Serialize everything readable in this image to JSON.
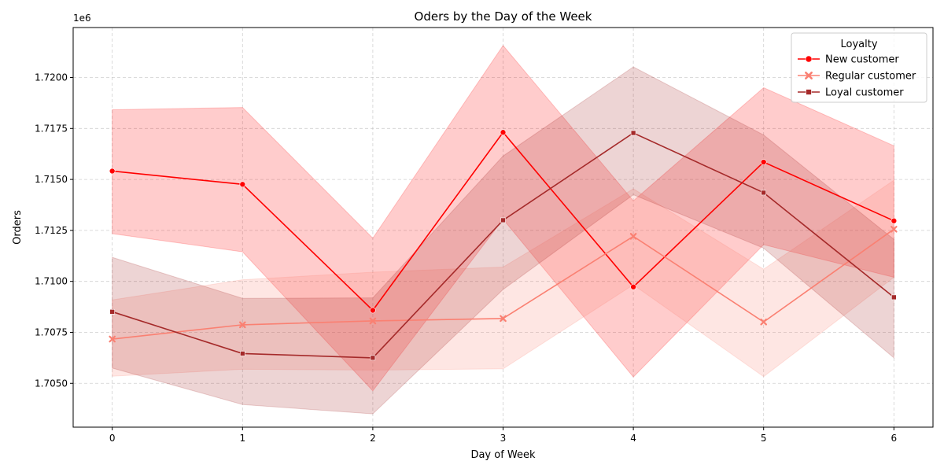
{
  "chart_data": {
    "type": "line",
    "title": "Oders by the Day of the Week",
    "xlabel": "Day of Week",
    "ylabel": "Orders",
    "offset_label": "1e6",
    "x": [
      0,
      1,
      2,
      3,
      4,
      5,
      6
    ],
    "xlim": [
      -0.3,
      6.3
    ],
    "ylim": [
      1.70285,
      1.72245
    ],
    "y_ticks": [
      1.705,
      1.7075,
      1.71,
      1.7125,
      1.715,
      1.7175,
      1.72
    ],
    "y_tick_labels": [
      "1.7050",
      "1.7075",
      "1.7100",
      "1.7125",
      "1.7150",
      "1.7175",
      "1.7200"
    ],
    "x_tick_labels": [
      "0",
      "1",
      "2",
      "3",
      "4",
      "5",
      "6"
    ],
    "grid": true,
    "legend": {
      "title": "Loyalty",
      "placement": "top-right"
    },
    "series": [
      {
        "name": "New customer",
        "color": "#ff0000",
        "marker": "circle",
        "values": [
          1.71541,
          1.71476,
          1.70858,
          1.71731,
          1.70973,
          1.71585,
          1.71297
        ],
        "ci_low": [
          1.71234,
          1.71145,
          1.70463,
          1.71305,
          1.70531,
          1.7118,
          1.7102
        ],
        "ci_high": [
          1.71842,
          1.71853,
          1.71212,
          1.72157,
          1.71395,
          1.7195,
          1.71665
        ]
      },
      {
        "name": "Regular customer",
        "color": "#fa8072",
        "marker": "x",
        "values": [
          1.70717,
          1.70787,
          1.70806,
          1.70818,
          1.71221,
          1.70801,
          1.71256
        ],
        "ci_low": [
          1.70535,
          1.70569,
          1.70565,
          1.70571,
          1.70983,
          1.70533,
          1.7102
        ],
        "ci_high": [
          1.70909,
          1.71008,
          1.71045,
          1.7107,
          1.71454,
          1.7106,
          1.71496
        ]
      },
      {
        "name": "Loyal customer",
        "color": "#a52a2a",
        "marker": "square",
        "values": [
          1.70851,
          1.70646,
          1.70625,
          1.713,
          1.71728,
          1.71435,
          1.70922
        ],
        "ci_low": [
          1.70575,
          1.70396,
          1.7035,
          1.7096,
          1.71425,
          1.71163,
          1.70625
        ],
        "ci_high": [
          1.71118,
          1.70917,
          1.70919,
          1.71615,
          1.72052,
          1.71718,
          1.71206
        ]
      }
    ]
  }
}
